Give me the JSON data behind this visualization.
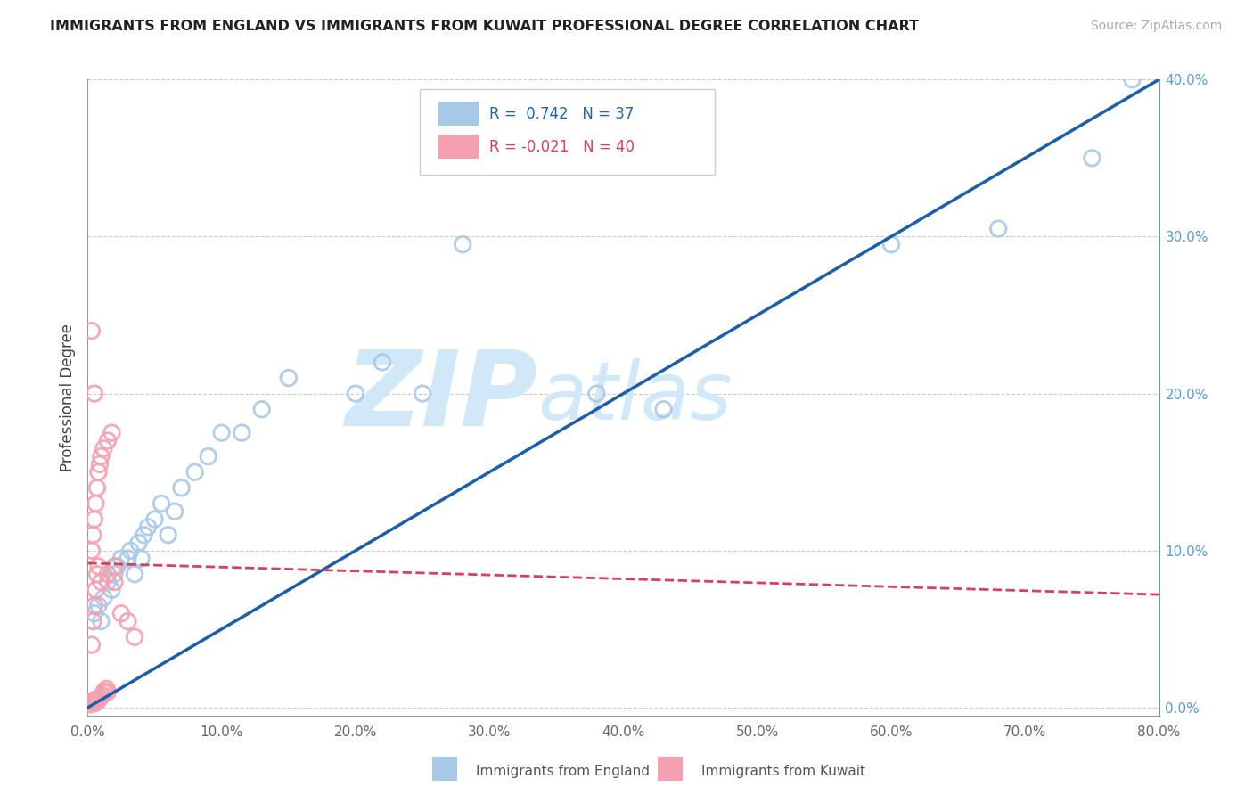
{
  "title": "IMMIGRANTS FROM ENGLAND VS IMMIGRANTS FROM KUWAIT PROFESSIONAL DEGREE CORRELATION CHART",
  "source": "Source: ZipAtlas.com",
  "ylabel": "Professional Degree",
  "r_england": 0.742,
  "n_england": 37,
  "r_kuwait": -0.021,
  "n_kuwait": 40,
  "england_color": "#a8c8e8",
  "kuwait_color": "#f4a0b0",
  "england_edge_color": "#7aafd4",
  "kuwait_edge_color": "#e87090",
  "england_line_color": "#1a5fa8",
  "kuwait_line_color": "#d44060",
  "watermark_zip": "ZIP",
  "watermark_atlas": "atlas",
  "watermark_color": "#d0e8f8",
  "xlim": [
    0.0,
    0.8
  ],
  "ylim": [
    -0.005,
    0.4
  ],
  "xticks": [
    0.0,
    0.1,
    0.2,
    0.3,
    0.4,
    0.5,
    0.6,
    0.7,
    0.8
  ],
  "yticks_right": [
    0.0,
    0.1,
    0.2,
    0.3,
    0.4
  ],
  "eng_line_x0": 0.0,
  "eng_line_y0": 0.0,
  "eng_line_x1": 0.8,
  "eng_line_y1": 0.4,
  "kuw_line_x0": 0.0,
  "kuw_line_y0": 0.092,
  "kuw_line_x1": 0.8,
  "kuw_line_y1": 0.072,
  "england_x": [
    0.005,
    0.008,
    0.01,
    0.012,
    0.015,
    0.018,
    0.02,
    0.022,
    0.025,
    0.03,
    0.032,
    0.035,
    0.038,
    0.04,
    0.042,
    0.045,
    0.05,
    0.055,
    0.06,
    0.065,
    0.07,
    0.08,
    0.09,
    0.1,
    0.115,
    0.13,
    0.15,
    0.2,
    0.22,
    0.25,
    0.28,
    0.38,
    0.43,
    0.6,
    0.68,
    0.75,
    0.78
  ],
  "england_y": [
    0.06,
    0.065,
    0.055,
    0.07,
    0.08,
    0.075,
    0.085,
    0.09,
    0.095,
    0.095,
    0.1,
    0.085,
    0.105,
    0.095,
    0.11,
    0.115,
    0.12,
    0.13,
    0.11,
    0.125,
    0.14,
    0.15,
    0.16,
    0.175,
    0.175,
    0.19,
    0.21,
    0.2,
    0.22,
    0.2,
    0.295,
    0.2,
    0.19,
    0.295,
    0.305,
    0.35,
    0.4
  ],
  "kuwait_x": [
    0.002,
    0.003,
    0.004,
    0.005,
    0.006,
    0.007,
    0.008,
    0.009,
    0.01,
    0.011,
    0.012,
    0.013,
    0.014,
    0.015,
    0.003,
    0.004,
    0.005,
    0.006,
    0.007,
    0.008,
    0.003,
    0.004,
    0.005,
    0.006,
    0.007,
    0.008,
    0.009,
    0.01,
    0.012,
    0.015,
    0.018,
    0.02,
    0.025,
    0.03,
    0.035,
    0.02,
    0.015,
    0.01,
    0.005,
    0.003
  ],
  "kuwait_y": [
    0.002,
    0.003,
    0.004,
    0.005,
    0.003,
    0.004,
    0.005,
    0.006,
    0.007,
    0.008,
    0.01,
    0.01,
    0.012,
    0.01,
    0.04,
    0.055,
    0.065,
    0.075,
    0.085,
    0.09,
    0.1,
    0.11,
    0.12,
    0.13,
    0.14,
    0.15,
    0.155,
    0.16,
    0.165,
    0.17,
    0.175,
    0.08,
    0.06,
    0.055,
    0.045,
    0.09,
    0.085,
    0.08,
    0.2,
    0.24
  ]
}
